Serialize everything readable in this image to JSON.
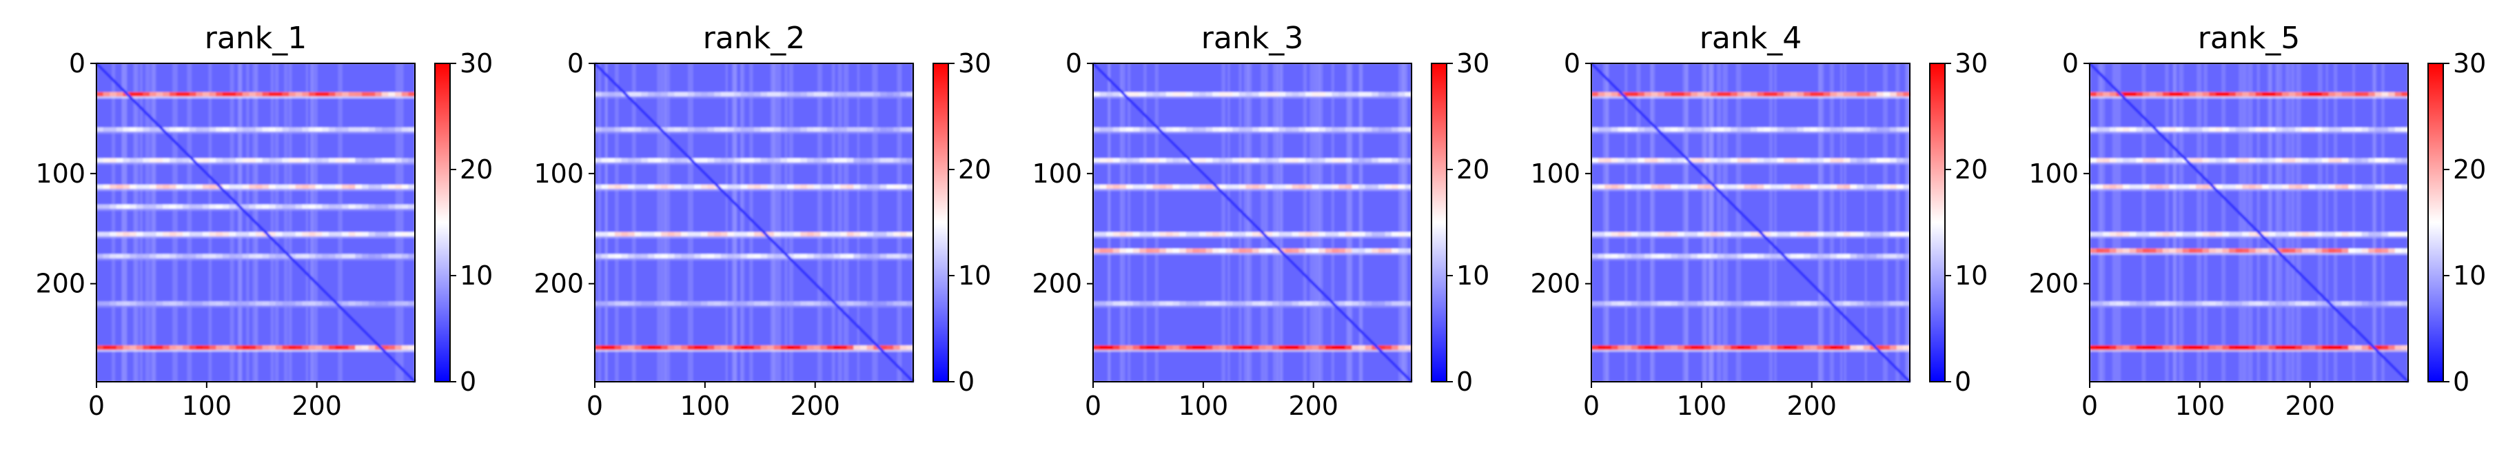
{
  "chart_data": [
    {
      "type": "heatmap",
      "title": "rank_1",
      "xlim": [
        0,
        289
      ],
      "ylim": [
        289,
        0
      ],
      "xticks": [
        0,
        100,
        200
      ],
      "yticks": [
        0,
        100,
        200
      ],
      "colorbar": {
        "range": [
          0,
          30
        ],
        "ticks": [
          0,
          10,
          20,
          30
        ],
        "colormap": "bwr"
      },
      "structure": {
        "diagonal_value": 3,
        "background_value": 6,
        "stripes": [
          {
            "row": 28,
            "value": 24
          },
          {
            "row": 60,
            "value": 13
          },
          {
            "row": 88,
            "value": 14
          },
          {
            "row": 112,
            "value": 16
          },
          {
            "row": 130,
            "value": 13
          },
          {
            "row": 155,
            "value": 15
          },
          {
            "row": 175,
            "value": 12
          },
          {
            "row": 218,
            "value": 11
          },
          {
            "row": 258,
            "value": 24
          }
        ]
      }
    },
    {
      "type": "heatmap",
      "title": "rank_2",
      "xlim": [
        0,
        289
      ],
      "ylim": [
        289,
        0
      ],
      "xticks": [
        0,
        100,
        200
      ],
      "yticks": [
        0,
        100,
        200
      ],
      "colorbar": {
        "range": [
          0,
          30
        ],
        "ticks": [
          0,
          10,
          20,
          30
        ],
        "colormap": "bwr"
      },
      "structure": {
        "diagonal_value": 3,
        "background_value": 6,
        "stripes": [
          {
            "row": 28,
            "value": 12
          },
          {
            "row": 60,
            "value": 12
          },
          {
            "row": 88,
            "value": 13
          },
          {
            "row": 112,
            "value": 15
          },
          {
            "row": 155,
            "value": 16
          },
          {
            "row": 175,
            "value": 13
          },
          {
            "row": 218,
            "value": 11
          },
          {
            "row": 258,
            "value": 25
          }
        ]
      }
    },
    {
      "type": "heatmap",
      "title": "rank_3",
      "xlim": [
        0,
        289
      ],
      "ylim": [
        289,
        0
      ],
      "xticks": [
        0,
        100,
        200
      ],
      "yticks": [
        0,
        100,
        200
      ],
      "colorbar": {
        "range": [
          0,
          30
        ],
        "ticks": [
          0,
          10,
          20,
          30
        ],
        "colormap": "bwr"
      },
      "structure": {
        "diagonal_value": 3,
        "background_value": 6,
        "stripes": [
          {
            "row": 28,
            "value": 14
          },
          {
            "row": 60,
            "value": 13
          },
          {
            "row": 88,
            "value": 14
          },
          {
            "row": 112,
            "value": 16
          },
          {
            "row": 155,
            "value": 15
          },
          {
            "row": 170,
            "value": 18
          },
          {
            "row": 218,
            "value": 12
          },
          {
            "row": 258,
            "value": 26
          }
        ]
      }
    },
    {
      "type": "heatmap",
      "title": "rank_4",
      "xlim": [
        0,
        289
      ],
      "ylim": [
        289,
        0
      ],
      "xticks": [
        0,
        100,
        200
      ],
      "yticks": [
        0,
        100,
        200
      ],
      "colorbar": {
        "range": [
          0,
          30
        ],
        "ticks": [
          0,
          10,
          20,
          30
        ],
        "colormap": "bwr"
      },
      "structure": {
        "diagonal_value": 3,
        "background_value": 6,
        "stripes": [
          {
            "row": 28,
            "value": 23
          },
          {
            "row": 60,
            "value": 13
          },
          {
            "row": 88,
            "value": 15
          },
          {
            "row": 112,
            "value": 16
          },
          {
            "row": 155,
            "value": 15
          },
          {
            "row": 175,
            "value": 13
          },
          {
            "row": 218,
            "value": 12
          },
          {
            "row": 258,
            "value": 25
          }
        ]
      }
    },
    {
      "type": "heatmap",
      "title": "rank_5",
      "xlim": [
        0,
        289
      ],
      "ylim": [
        289,
        0
      ],
      "xticks": [
        0,
        100,
        200
      ],
      "yticks": [
        0,
        100,
        200
      ],
      "colorbar": {
        "range": [
          0,
          30
        ],
        "ticks": [
          0,
          10,
          20,
          30
        ],
        "colormap": "bwr"
      },
      "structure": {
        "diagonal_value": 3,
        "background_value": 6,
        "stripes": [
          {
            "row": 28,
            "value": 25
          },
          {
            "row": 60,
            "value": 14
          },
          {
            "row": 88,
            "value": 15
          },
          {
            "row": 112,
            "value": 16
          },
          {
            "row": 155,
            "value": 15
          },
          {
            "row": 170,
            "value": 21
          },
          {
            "row": 218,
            "value": 12
          },
          {
            "row": 258,
            "value": 27
          }
        ]
      }
    }
  ]
}
